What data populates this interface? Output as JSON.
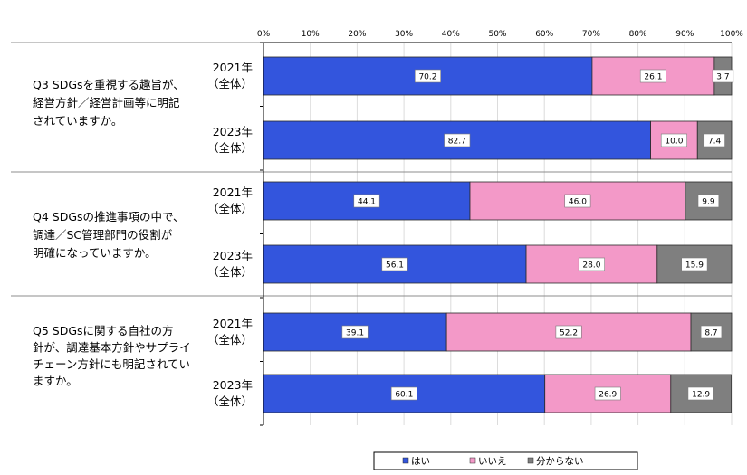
{
  "chart_data": {
    "type": "bar",
    "stacked": true,
    "orientation": "horizontal",
    "xlim": [
      0,
      100
    ],
    "x_ticks": [
      "0%",
      "10%",
      "20%",
      "30%",
      "40%",
      "50%",
      "60%",
      "70%",
      "80%",
      "90%",
      "100%"
    ],
    "colors": {
      "はい": "#3355dd",
      "いいえ": "#f399c8",
      "分からない": "#7f7f7f"
    },
    "legend": [
      "はい",
      "いいえ",
      "分からない"
    ],
    "groups": [
      {
        "question": [
          "Q3 SDGsを重視する趣旨が、",
          "経営方針／経営計画等に明記",
          "されていますか。"
        ],
        "rows": [
          {
            "label": [
              "2021年",
              "（全体）"
            ],
            "values": [
              70.2,
              26.1,
              3.7
            ],
            "labels": [
              "70.2",
              "26.1",
              "3.7"
            ]
          },
          {
            "label": [
              "2023年",
              "（全体）"
            ],
            "values": [
              82.7,
              10.0,
              7.4
            ],
            "labels": [
              "82.7",
              "10.0",
              "7.4"
            ]
          }
        ]
      },
      {
        "question": [
          "Q4 SDGsの推進事項の中で、",
          "調達／SC管理部門の役割が",
          "明確になっていますか。"
        ],
        "rows": [
          {
            "label": [
              "2021年",
              "（全体）"
            ],
            "values": [
              44.1,
              46.0,
              9.9
            ],
            "labels": [
              "44.1",
              "46.0",
              "9.9"
            ]
          },
          {
            "label": [
              "2023年",
              "（全体）"
            ],
            "values": [
              56.1,
              28.0,
              15.9
            ],
            "labels": [
              "56.1",
              "28.0",
              "15.9"
            ]
          }
        ]
      },
      {
        "question": [
          "Q5 SDGsに関する自社の方",
          "針が、調達基本方針やサプライ",
          "チェーン方針にも明記されてい",
          "ますか。"
        ],
        "rows": [
          {
            "label": [
              "2021年",
              "（全体）"
            ],
            "values": [
              39.1,
              52.2,
              8.7
            ],
            "labels": [
              "39.1",
              "52.2",
              "8.7"
            ]
          },
          {
            "label": [
              "2023年",
              "（全体）"
            ],
            "values": [
              60.1,
              26.9,
              12.9
            ],
            "labels": [
              "60.1",
              "26.9",
              "12.9"
            ]
          }
        ]
      }
    ]
  }
}
